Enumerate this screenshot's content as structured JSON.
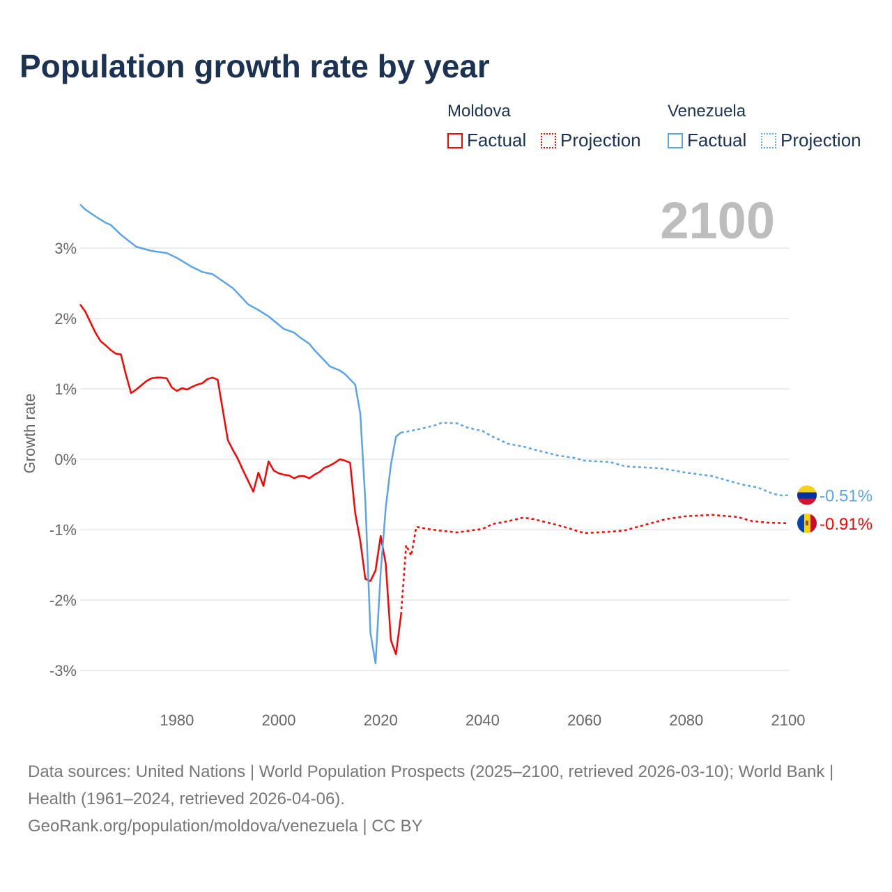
{
  "title": "Population growth rate by year",
  "legend": {
    "groups": [
      {
        "country": "Moldova",
        "factual": "Factual",
        "projection": "Projection",
        "color": "#ff0000"
      },
      {
        "country": "Venezuela",
        "factual": "Factual",
        "projection": "Projection",
        "color": "#5ba4ea"
      }
    ]
  },
  "year_label": "2100",
  "footer": {
    "sources": "Data sources: United Nations | World Population Prospects (2025–2100, retrieved 2026-03-10); World Bank | Health (1961–2024, retrieved 2026-04-06).",
    "credit": "GeoRank.org/population/moldova/venezuela | CC BY"
  },
  "chart_data": {
    "type": "line",
    "title": "Population growth rate by year",
    "xlabel": "",
    "ylabel": "Growth rate",
    "xlim": [
      1961,
      2100
    ],
    "ylim": [
      -3.5,
      3.7
    ],
    "xticks": [
      1980,
      2000,
      2020,
      2040,
      2060,
      2080,
      2100
    ],
    "xtick_labels": [
      "1980",
      "2000",
      "2020",
      "2040",
      "2060",
      "2080",
      "2100"
    ],
    "yticks": [
      3,
      2,
      1,
      0,
      -1,
      -2,
      -3
    ],
    "ytick_labels": [
      "3%",
      "2%",
      "1%",
      "0%",
      "-1%",
      "-2%",
      "-3%"
    ],
    "grid": true,
    "series": [
      {
        "name": "Moldova",
        "color": "#ff0000",
        "end_label": "-0.91%",
        "flag": "moldova-flag",
        "factual": [
          [
            1961,
            2.2
          ],
          [
            1962,
            2.1
          ],
          [
            1963,
            1.95
          ],
          [
            1964,
            1.8
          ],
          [
            1965,
            1.68
          ],
          [
            1966,
            1.62
          ],
          [
            1967,
            1.55
          ],
          [
            1968,
            1.5
          ],
          [
            1969,
            1.49
          ],
          [
            1970,
            1.2
          ],
          [
            1971,
            0.94
          ],
          [
            1972,
            0.99
          ],
          [
            1973,
            1.05
          ],
          [
            1974,
            1.11
          ],
          [
            1975,
            1.15
          ],
          [
            1976,
            1.16
          ],
          [
            1977,
            1.16
          ],
          [
            1978,
            1.15
          ],
          [
            1979,
            1.02
          ],
          [
            1980,
            0.97
          ],
          [
            1981,
            1.01
          ],
          [
            1982,
            0.99
          ],
          [
            1983,
            1.03
          ],
          [
            1984,
            1.06
          ],
          [
            1985,
            1.08
          ],
          [
            1986,
            1.14
          ],
          [
            1987,
            1.16
          ],
          [
            1988,
            1.13
          ],
          [
            1989,
            0.7
          ],
          [
            1990,
            0.27
          ],
          [
            1991,
            0.13
          ],
          [
            1992,
            0.0
          ],
          [
            1993,
            -0.16
          ],
          [
            1994,
            -0.31
          ],
          [
            1995,
            -0.46
          ],
          [
            1996,
            -0.19
          ],
          [
            1997,
            -0.38
          ],
          [
            1998,
            -0.03
          ],
          [
            1999,
            -0.16
          ],
          [
            2000,
            -0.2
          ],
          [
            2001,
            -0.22
          ],
          [
            2002,
            -0.23
          ],
          [
            2003,
            -0.27
          ],
          [
            2004,
            -0.24
          ],
          [
            2005,
            -0.24
          ],
          [
            2006,
            -0.27
          ],
          [
            2007,
            -0.22
          ],
          [
            2008,
            -0.18
          ],
          [
            2009,
            -0.12
          ],
          [
            2010,
            -0.09
          ],
          [
            2011,
            -0.05
          ],
          [
            2012,
            0.0
          ],
          [
            2013,
            -0.02
          ],
          [
            2014,
            -0.05
          ],
          [
            2015,
            -0.76
          ],
          [
            2016,
            -1.16
          ],
          [
            2017,
            -1.7
          ],
          [
            2018,
            -1.73
          ],
          [
            2019,
            -1.58
          ],
          [
            2020,
            -1.09
          ],
          [
            2021,
            -1.49
          ],
          [
            2022,
            -2.57
          ],
          [
            2023,
            -2.77
          ],
          [
            2024,
            -2.21
          ]
        ],
        "projection": [
          [
            2024,
            -2.21
          ],
          [
            2025,
            -1.22
          ],
          [
            2026,
            -1.37
          ],
          [
            2027,
            -0.96
          ],
          [
            2030,
            -1.0
          ],
          [
            2035,
            -1.04
          ],
          [
            2040,
            -0.99
          ],
          [
            2042,
            -0.92
          ],
          [
            2045,
            -0.88
          ],
          [
            2048,
            -0.83
          ],
          [
            2050,
            -0.85
          ],
          [
            2055,
            -0.94
          ],
          [
            2060,
            -1.05
          ],
          [
            2065,
            -1.03
          ],
          [
            2068,
            -1.01
          ],
          [
            2072,
            -0.93
          ],
          [
            2076,
            -0.85
          ],
          [
            2080,
            -0.81
          ],
          [
            2085,
            -0.79
          ],
          [
            2090,
            -0.82
          ],
          [
            2093,
            -0.88
          ],
          [
            2096,
            -0.9
          ],
          [
            2100,
            -0.91
          ]
        ]
      },
      {
        "name": "Venezuela",
        "color": "#5ba4ea",
        "end_label": "-0.51%",
        "flag": "venezuela-flag",
        "factual": [
          [
            1961,
            3.62
          ],
          [
            1962,
            3.55
          ],
          [
            1964,
            3.45
          ],
          [
            1966,
            3.36
          ],
          [
            1967,
            3.33
          ],
          [
            1969,
            3.19
          ],
          [
            1972,
            3.02
          ],
          [
            1975,
            2.96
          ],
          [
            1978,
            2.93
          ],
          [
            1980,
            2.86
          ],
          [
            1983,
            2.73
          ],
          [
            1985,
            2.66
          ],
          [
            1987,
            2.63
          ],
          [
            1988,
            2.58
          ],
          [
            1991,
            2.43
          ],
          [
            1994,
            2.2
          ],
          [
            1996,
            2.12
          ],
          [
            1998,
            2.03
          ],
          [
            2001,
            1.85
          ],
          [
            2003,
            1.8
          ],
          [
            2004,
            1.74
          ],
          [
            2006,
            1.64
          ],
          [
            2007,
            1.55
          ],
          [
            2009,
            1.4
          ],
          [
            2010,
            1.32
          ],
          [
            2012,
            1.26
          ],
          [
            2013,
            1.21
          ],
          [
            2015,
            1.06
          ],
          [
            2016,
            0.65
          ],
          [
            2017,
            -0.6
          ],
          [
            2018,
            -2.47
          ],
          [
            2019,
            -2.9
          ],
          [
            2020,
            -1.6
          ],
          [
            2021,
            -0.68
          ],
          [
            2022,
            -0.08
          ],
          [
            2023,
            0.32
          ],
          [
            2024,
            0.38
          ]
        ],
        "projection": [
          [
            2024,
            0.38
          ],
          [
            2025,
            0.39
          ],
          [
            2027,
            0.42
          ],
          [
            2029,
            0.45
          ],
          [
            2031,
            0.49
          ],
          [
            2032,
            0.52
          ],
          [
            2035,
            0.51
          ],
          [
            2037,
            0.45
          ],
          [
            2040,
            0.4
          ],
          [
            2042,
            0.32
          ],
          [
            2045,
            0.22
          ],
          [
            2048,
            0.18
          ],
          [
            2050,
            0.14
          ],
          [
            2055,
            0.05
          ],
          [
            2058,
            0.02
          ],
          [
            2060,
            -0.02
          ],
          [
            2065,
            -0.04
          ],
          [
            2068,
            -0.1
          ],
          [
            2070,
            -0.11
          ],
          [
            2075,
            -0.13
          ],
          [
            2080,
            -0.19
          ],
          [
            2085,
            -0.24
          ],
          [
            2088,
            -0.3
          ],
          [
            2091,
            -0.36
          ],
          [
            2094,
            -0.4
          ],
          [
            2097,
            -0.49
          ],
          [
            2099,
            -0.52
          ],
          [
            2100,
            -0.51
          ]
        ]
      }
    ]
  }
}
